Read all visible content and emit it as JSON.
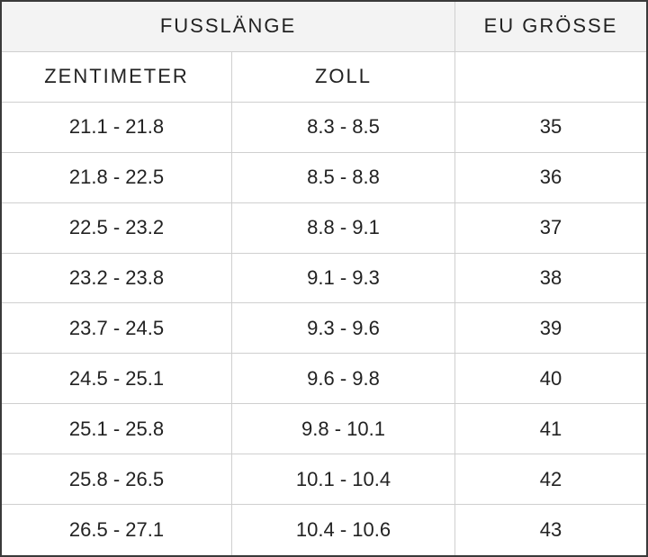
{
  "table": {
    "header": [
      [
        "FUSSLÄNGE",
        "EU GRÖSSE"
      ],
      [
        "ZENTIMETER",
        "ZOLL"
      ]
    ],
    "rows": [
      [
        "21.1 - 21.8",
        "8.3 - 8.5",
        "35"
      ],
      [
        "21.8 - 22.5",
        "8.5 - 8.8",
        "36"
      ],
      [
        "22.5 - 23.2",
        "8.8 - 9.1",
        "37"
      ],
      [
        "23.2 - 23.8",
        "9.1 - 9.3",
        "38"
      ],
      [
        "23.7 - 24.5",
        "9.3 - 9.6",
        "39"
      ],
      [
        "24.5 - 25.1",
        "9.6 - 9.8",
        "40"
      ],
      [
        "25.1 - 25.8",
        "9.8 - 10.1",
        "41"
      ],
      [
        "25.8 - 26.5",
        "10.1 - 10.4",
        "42"
      ],
      [
        "26.5 - 27.1",
        "10.4 - 10.6",
        "43"
      ]
    ]
  }
}
